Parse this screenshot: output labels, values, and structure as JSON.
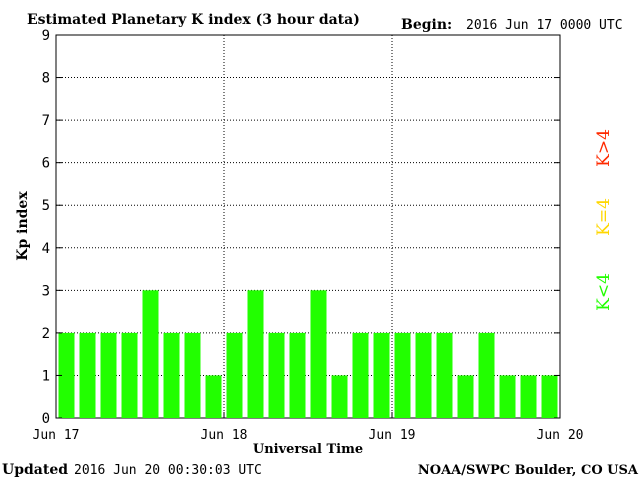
{
  "header": {
    "title": "Estimated Planetary K index (3 hour data)",
    "begin_label": "Begin:",
    "begin_value": "2016 Jun 17 0000 UTC"
  },
  "footer": {
    "updated_label": "Updated",
    "updated_value": "2016 Jun 20 00:30:03 UTC",
    "source": "NOAA/SWPC Boulder, CO USA"
  },
  "legend": {
    "above": "K>4",
    "equal": "K=4",
    "below": "K<4"
  },
  "colors": {
    "below": "#22ff00",
    "equal": "#ffd700",
    "above": "#ff2a00",
    "frame": "#000000",
    "background": "#ffffff"
  },
  "chart_data": {
    "type": "bar",
    "ylabel": "Kp index",
    "xlabel": "Universal Time",
    "ylim": [
      0,
      9
    ],
    "yticks": [
      "0",
      "1",
      "2",
      "3",
      "4",
      "5",
      "6",
      "7",
      "8",
      "9"
    ],
    "xticks": [
      "Jun 17",
      "Jun 18",
      "Jun 19",
      "Jun 20"
    ],
    "grid": true,
    "values": [
      2,
      2,
      2,
      2,
      3,
      2,
      2,
      1,
      2,
      3,
      2,
      2,
      3,
      1,
      2,
      2,
      2,
      2,
      2,
      1,
      2,
      1,
      1,
      1
    ]
  }
}
